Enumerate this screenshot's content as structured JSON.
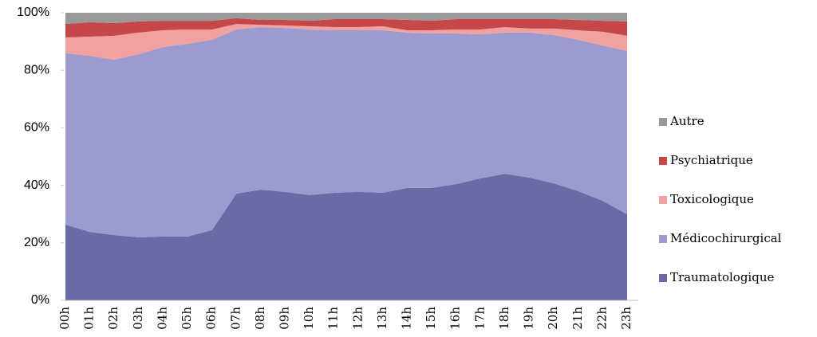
{
  "chart_data": {
    "type": "stacked-area",
    "categories": [
      "00h",
      "01h",
      "02h",
      "03h",
      "04h",
      "05h",
      "06h",
      "07h",
      "08h",
      "09h",
      "10h",
      "11h",
      "12h",
      "13h",
      "14h",
      "15h",
      "16h",
      "17h",
      "18h",
      "19h",
      "20h",
      "21h",
      "22h",
      "23h"
    ],
    "series": [
      {
        "name": "Traumatologique",
        "color": "#6a6aa6",
        "values": [
          26.3,
          23.8,
          22.7,
          21.9,
          22.2,
          22.2,
          24.4,
          37.1,
          38.5,
          37.7,
          36.6,
          37.4,
          37.7,
          37.4,
          39.1,
          39.1,
          40.4,
          42.4,
          44.0,
          42.7,
          40.7,
          38.0,
          34.6,
          29.9
        ]
      },
      {
        "name": "Médicochirurgical",
        "color": "#9b9bd0",
        "values": [
          59.6,
          61.2,
          61.0,
          63.7,
          65.9,
          67.0,
          66.2,
          57.1,
          56.5,
          57.0,
          57.6,
          56.5,
          56.2,
          56.5,
          54.0,
          53.7,
          52.4,
          50.1,
          49.1,
          50.4,
          51.5,
          52.6,
          54.0,
          56.8
        ]
      },
      {
        "name": "Toxicologique",
        "color": "#f2a1a1",
        "values": [
          5.5,
          6.7,
          8.3,
          7.5,
          5.8,
          5.0,
          3.6,
          1.9,
          0.8,
          0.9,
          1.1,
          1.1,
          1.1,
          1.4,
          0.8,
          1.1,
          1.4,
          1.7,
          1.9,
          1.4,
          2.3,
          3.3,
          4.8,
          5.3
        ]
      },
      {
        "name": "Psychiatrique",
        "color": "#c64747",
        "values": [
          4.7,
          5.0,
          4.4,
          3.9,
          3.3,
          3.0,
          3.0,
          2.0,
          1.7,
          1.9,
          1.9,
          2.8,
          2.8,
          2.5,
          3.6,
          3.3,
          3.6,
          3.6,
          2.8,
          3.3,
          3.3,
          3.6,
          3.8,
          5.0
        ]
      },
      {
        "name": "Autre",
        "color": "#999999",
        "values": [
          3.9,
          3.3,
          3.6,
          3.0,
          2.8,
          2.8,
          2.8,
          1.9,
          2.5,
          2.5,
          2.8,
          2.2,
          2.2,
          2.2,
          2.5,
          2.8,
          2.2,
          2.2,
          2.2,
          2.2,
          2.2,
          2.5,
          2.8,
          3.0
        ]
      }
    ],
    "ylim": [
      0,
      100
    ],
    "yticks": [
      {
        "value": 0,
        "label": "0%"
      },
      {
        "value": 20,
        "label": "20%"
      },
      {
        "value": 40,
        "label": "40%"
      },
      {
        "value": 60,
        "label": "60%"
      },
      {
        "value": 80,
        "label": "80%"
      },
      {
        "value": 100,
        "label": "100%"
      }
    ],
    "legend": "right"
  }
}
